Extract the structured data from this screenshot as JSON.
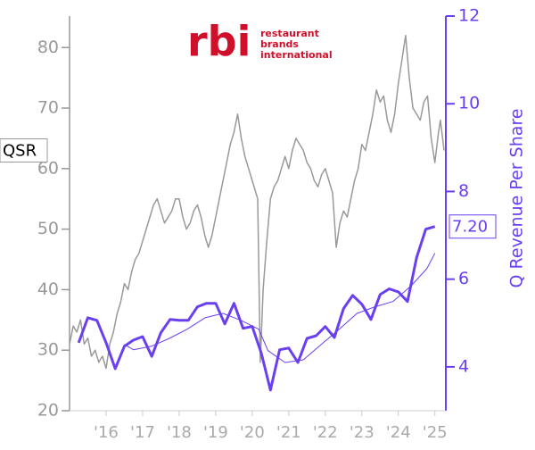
{
  "chart_data": {
    "type": "line",
    "logo": {
      "mark": "rbi",
      "lines": [
        "restaurant",
        "brands",
        "international"
      ]
    },
    "xlim": [
      2015,
      2025.3
    ],
    "xticks": [
      {
        "value": 2016,
        "label": "'16"
      },
      {
        "value": 2017,
        "label": "'17"
      },
      {
        "value": 2018,
        "label": "'18"
      },
      {
        "value": 2019,
        "label": "'19"
      },
      {
        "value": 2020,
        "label": "'20"
      },
      {
        "value": 2021,
        "label": "'21"
      },
      {
        "value": 2022,
        "label": "'22"
      },
      {
        "value": 2023,
        "label": "'23"
      },
      {
        "value": 2024,
        "label": "'24"
      },
      {
        "value": 2025,
        "label": "'25"
      }
    ],
    "ylim": [
      20,
      85.2
    ],
    "yticks": [
      20,
      30,
      40,
      50,
      60,
      70,
      80
    ],
    "y2lim": [
      3,
      12
    ],
    "y2ticks": [
      4,
      6,
      8,
      10,
      12
    ],
    "y2label": "Q Revenue Per Share",
    "series": [
      {
        "name": "QSR",
        "color": "#999999",
        "width": 1.5,
        "x": [
          2015.0,
          2015.1,
          2015.2,
          2015.3,
          2015.4,
          2015.5,
          2015.6,
          2015.7,
          2015.8,
          2015.9,
          2016.0,
          2016.1,
          2016.2,
          2016.3,
          2016.4,
          2016.5,
          2016.6,
          2016.7,
          2016.8,
          2016.9,
          2017.0,
          2017.1,
          2017.2,
          2017.3,
          2017.4,
          2017.5,
          2017.6,
          2017.7,
          2017.8,
          2017.9,
          2018.0,
          2018.1,
          2018.2,
          2018.3,
          2018.4,
          2018.5,
          2018.6,
          2018.7,
          2018.8,
          2018.9,
          2019.0,
          2019.1,
          2019.2,
          2019.3,
          2019.4,
          2019.5,
          2019.6,
          2019.7,
          2019.8,
          2019.9,
          2020.0,
          2020.1,
          2020.15,
          2020.22,
          2020.3,
          2020.4,
          2020.5,
          2020.6,
          2020.7,
          2020.8,
          2020.9,
          2021.0,
          2021.1,
          2021.2,
          2021.3,
          2021.4,
          2021.5,
          2021.6,
          2021.7,
          2021.8,
          2021.9,
          2022.0,
          2022.1,
          2022.2,
          2022.3,
          2022.4,
          2022.5,
          2022.6,
          2022.7,
          2022.8,
          2022.9,
          2023.0,
          2023.1,
          2023.2,
          2023.3,
          2023.4,
          2023.5,
          2023.6,
          2023.7,
          2023.8,
          2023.9,
          2024.0,
          2024.1,
          2024.2,
          2024.3,
          2024.4,
          2024.5,
          2024.6,
          2024.7,
          2024.8,
          2024.9,
          2025.0,
          2025.1,
          2025.15,
          2025.25
        ],
        "values": [
          31,
          34,
          33,
          35,
          31,
          32,
          29,
          30,
          28,
          29,
          27,
          31,
          33,
          36,
          38,
          41,
          40,
          43,
          45,
          46,
          48,
          50,
          52,
          54,
          55,
          53,
          51,
          52,
          53,
          55,
          55,
          52,
          50,
          51,
          53,
          54,
          52,
          49,
          47,
          49,
          52,
          55,
          58,
          61,
          64,
          66,
          69,
          65,
          62,
          60,
          58,
          56,
          55,
          28,
          40,
          48,
          55,
          57,
          58,
          60,
          62,
          60,
          63,
          65,
          64,
          63,
          61,
          60,
          58,
          57,
          59,
          60,
          58,
          56,
          47,
          51,
          53,
          52,
          55,
          58,
          60,
          64,
          63,
          66,
          69,
          73,
          71,
          72,
          68,
          66,
          69,
          74,
          78,
          82,
          75,
          70,
          69,
          68,
          71,
          72,
          65,
          61,
          66,
          68,
          63
        ]
      },
      {
        "color": "#6a3ff0",
        "width": 3,
        "axis": "y2",
        "x": [
          2015.25,
          2015.5,
          2015.75,
          2016.0,
          2016.25,
          2016.5,
          2016.75,
          2017.0,
          2017.25,
          2017.5,
          2017.75,
          2018.0,
          2018.25,
          2018.5,
          2018.75,
          2019.0,
          2019.25,
          2019.5,
          2019.75,
          2020.0,
          2020.25,
          2020.5,
          2020.75,
          2021.0,
          2021.25,
          2021.5,
          2021.75,
          2022.0,
          2022.25,
          2022.5,
          2022.75,
          2023.0,
          2023.25,
          2023.5,
          2023.75,
          2024.0,
          2024.25,
          2024.5,
          2024.75,
          2025.0
        ],
        "values": [
          4.55,
          5.12,
          5.06,
          4.55,
          3.96,
          4.47,
          4.61,
          4.69,
          4.24,
          4.78,
          5.08,
          5.06,
          5.06,
          5.37,
          5.45,
          5.45,
          4.98,
          5.45,
          4.88,
          4.92,
          4.31,
          3.47,
          4.39,
          4.43,
          4.1,
          4.65,
          4.71,
          4.92,
          4.67,
          5.33,
          5.63,
          5.43,
          5.08,
          5.65,
          5.78,
          5.71,
          5.49,
          6.49,
          7.14,
          7.2
        ],
        "value_labels": [
          null,
          null,
          null,
          null,
          null,
          null,
          null,
          null,
          null,
          null,
          null,
          null,
          null,
          null,
          null,
          null,
          null,
          null,
          null,
          null,
          null,
          null,
          null,
          null,
          null,
          null,
          null,
          null,
          null,
          null,
          null,
          null,
          null,
          null,
          null,
          null,
          null,
          null,
          null,
          "7.20"
        ]
      },
      {
        "color": "#6a3ff0",
        "width": 1,
        "axis": "y2",
        "x": [
          2016.5,
          2016.75,
          2017.24,
          2017.73,
          2018.22,
          2018.71,
          2019.2,
          2019.69,
          2020.18,
          2020.43,
          2020.9,
          2021.4,
          2021.89,
          2022.38,
          2022.87,
          2023.36,
          2023.85,
          2024.34,
          2024.78,
          2025.0
        ],
        "values": [
          4.51,
          4.39,
          4.47,
          4.65,
          4.86,
          5.12,
          5.22,
          5.06,
          4.86,
          4.37,
          4.1,
          4.16,
          4.51,
          4.86,
          5.22,
          5.37,
          5.49,
          5.84,
          6.24,
          6.59
        ]
      }
    ]
  }
}
